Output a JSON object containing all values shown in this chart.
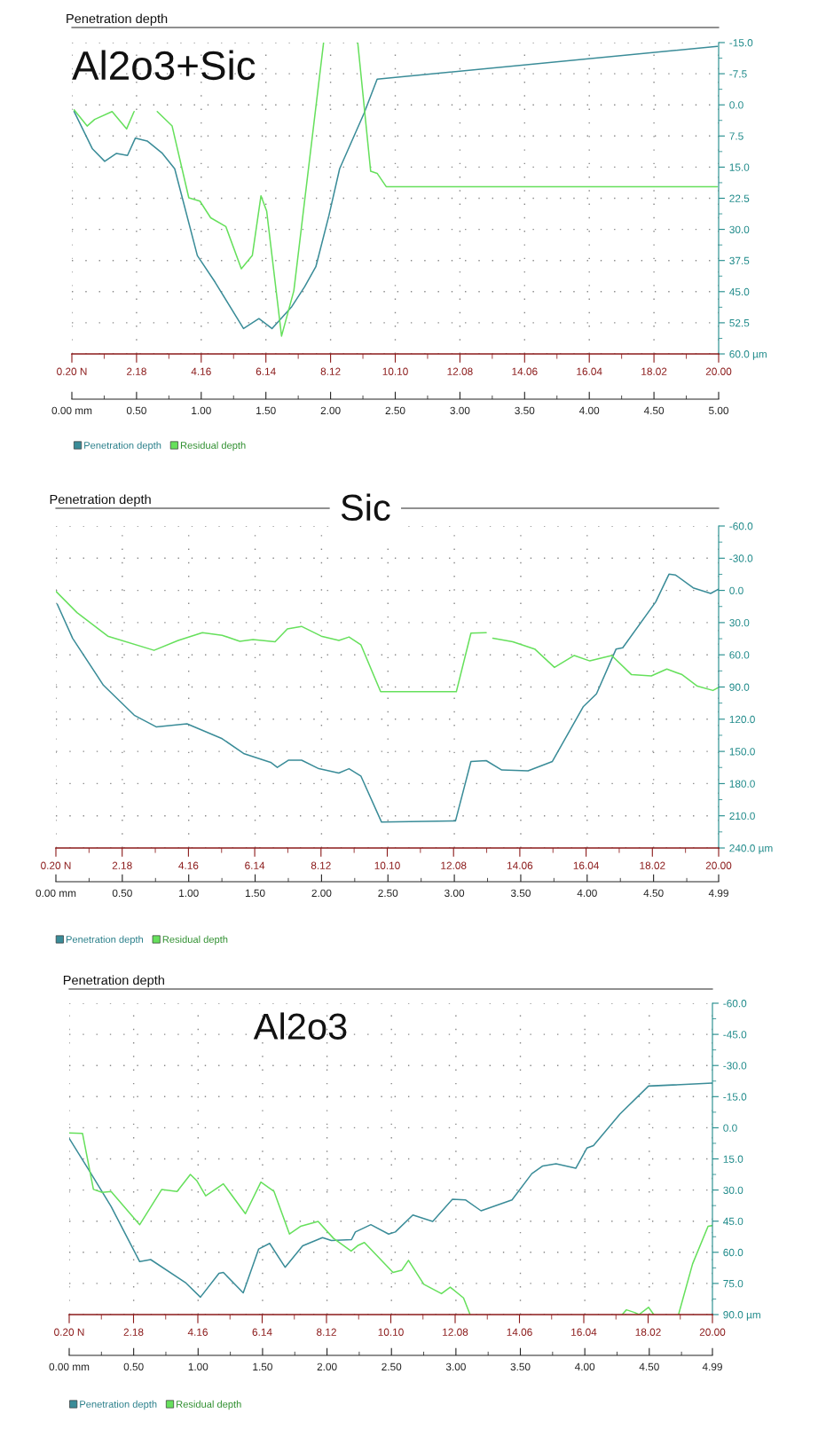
{
  "chart_data": [
    {
      "type": "line",
      "title": "Penetration depth",
      "annotations": [
        "Al2o3+Sic"
      ],
      "xlim": [
        0,
        5
      ],
      "xticks": [
        {
          "value": 0,
          "label": "0.00 mm"
        },
        {
          "value": 0.5,
          "label": "0.50"
        },
        {
          "value": 1,
          "label": "1.00"
        },
        {
          "value": 1.5,
          "label": "1.50"
        },
        {
          "value": 2,
          "label": "2.00"
        },
        {
          "value": 2.5,
          "label": "2.50"
        },
        {
          "value": 3,
          "label": "3.00"
        },
        {
          "value": 3.5,
          "label": "3.50"
        },
        {
          "value": 4,
          "label": "4.00"
        },
        {
          "value": 4.5,
          "label": "4.50"
        },
        {
          "value": 5,
          "label": "5.00"
        }
      ],
      "x2lim": [
        0.2,
        20.0
      ],
      "x2ticks": [
        {
          "value": 0.2,
          "label": "0.20 N"
        },
        {
          "value": 2.18,
          "label": "2.18"
        },
        {
          "value": 4.16,
          "label": "4.16"
        },
        {
          "value": 6.14,
          "label": "6.14"
        },
        {
          "value": 8.12,
          "label": "8.12"
        },
        {
          "value": 10.1,
          "label": "10.10"
        },
        {
          "value": 12.08,
          "label": "12.08"
        },
        {
          "value": 14.06,
          "label": "14.06"
        },
        {
          "value": 16.04,
          "label": "16.04"
        },
        {
          "value": 18.02,
          "label": "18.02"
        },
        {
          "value": 20.0,
          "label": "20.00"
        }
      ],
      "ylim": [
        60,
        -15
      ],
      "yticks": [
        {
          "value": -15,
          "label": "-15.0"
        },
        {
          "value": -7.5,
          "label": "-7.5"
        },
        {
          "value": 0,
          "label": "0.0"
        },
        {
          "value": 7.5,
          "label": "7.5"
        },
        {
          "value": 15,
          "label": "15.0"
        },
        {
          "value": 22.5,
          "label": "22.5"
        },
        {
          "value": 30,
          "label": "30.0"
        },
        {
          "value": 37.5,
          "label": "37.5"
        },
        {
          "value": 45,
          "label": "45.0"
        },
        {
          "value": 52.5,
          "label": "52.5"
        },
        {
          "value": 60,
          "label": "60.0 µm"
        }
      ],
      "grid": true,
      "legend": "bottom",
      "series": [
        {
          "name": "Penetration depth",
          "color": "#3a8c98",
          "x": [
            0.017,
            0.159,
            0.254,
            0.345,
            0.43,
            0.491,
            0.582,
            0.7,
            0.795,
            0.97,
            1.107,
            1.327,
            1.446,
            1.547,
            1.7,
            1.8,
            1.886,
            1.987,
            2.07,
            2.258,
            2.36,
            4.99
          ],
          "values": [
            1.6,
            10.6,
            13.6,
            11.7,
            12.2,
            8.0,
            8.7,
            11.7,
            15.4,
            36.3,
            42.7,
            53.9,
            51.5,
            53.9,
            48.6,
            43.8,
            39.0,
            26.7,
            15.4,
            2.1,
            -6.2,
            -14.1
          ]
        },
        {
          "name": "Residual depth",
          "color": "#66e05c",
          "x": [
            0.017,
            0.118,
            0.176,
            0.311,
            0.423,
            0.481,
            0.57,
            0.66,
            0.775,
            0.904,
            0.99,
            1.073,
            1.19,
            1.31,
            1.395,
            1.462,
            1.506,
            1.621,
            1.716,
            1.946,
            2.08,
            2.21,
            2.31,
            2.36,
            2.43,
            4.99
          ],
          "values": [
            1.2,
            5.1,
            3.5,
            1.6,
            5.8,
            1.6,
            null,
            1.6,
            5.1,
            22.4,
            23.2,
            27.2,
            29.3,
            39.5,
            36.3,
            21.9,
            25.6,
            55.7,
            44.8,
            -15,
            null,
            -15,
            16.0,
            16.5,
            19.7,
            19.7
          ]
        }
      ]
    },
    {
      "type": "line",
      "title": "Penetration depth",
      "annotations": [
        "Sic"
      ],
      "xlim": [
        0,
        4.99
      ],
      "xticks": [
        {
          "value": 0,
          "label": "0.00 mm"
        },
        {
          "value": 0.5,
          "label": "0.50"
        },
        {
          "value": 1,
          "label": "1.00"
        },
        {
          "value": 1.5,
          "label": "1.50"
        },
        {
          "value": 2,
          "label": "2.00"
        },
        {
          "value": 2.5,
          "label": "2.50"
        },
        {
          "value": 3,
          "label": "3.00"
        },
        {
          "value": 3.5,
          "label": "3.50"
        },
        {
          "value": 4,
          "label": "4.00"
        },
        {
          "value": 4.5,
          "label": "4.50"
        },
        {
          "value": 4.99,
          "label": "4.99"
        }
      ],
      "x2lim": [
        0.2,
        20.0
      ],
      "x2ticks": [
        {
          "value": 0.2,
          "label": "0.20 N"
        },
        {
          "value": 2.18,
          "label": "2.18"
        },
        {
          "value": 4.16,
          "label": "4.16"
        },
        {
          "value": 6.14,
          "label": "6.14"
        },
        {
          "value": 8.12,
          "label": "8.12"
        },
        {
          "value": 10.1,
          "label": "10.10"
        },
        {
          "value": 12.08,
          "label": "12.08"
        },
        {
          "value": 14.06,
          "label": "14.06"
        },
        {
          "value": 16.04,
          "label": "16.04"
        },
        {
          "value": 18.02,
          "label": "18.02"
        },
        {
          "value": 20.0,
          "label": "20.00"
        }
      ],
      "ylim": [
        240,
        -60
      ],
      "yticks": [
        {
          "value": -60,
          "label": "-60.0"
        },
        {
          "value": -30,
          "label": "-30.0"
        },
        {
          "value": 0,
          "label": "0.0"
        },
        {
          "value": 30,
          "label": "30.0"
        },
        {
          "value": 60,
          "label": "60.0"
        },
        {
          "value": 90,
          "label": "90.0"
        },
        {
          "value": 120,
          "label": "120.0"
        },
        {
          "value": 150,
          "label": "150.0"
        },
        {
          "value": 180,
          "label": "180.0"
        },
        {
          "value": 210,
          "label": "210.0"
        },
        {
          "value": 240,
          "label": "240.0 µm"
        }
      ],
      "grid": true,
      "legend": "bottom",
      "series": [
        {
          "name": "Penetration depth",
          "color": "#3a8c98",
          "x": [
            0.01,
            0.126,
            0.358,
            0.59,
            0.755,
            0.987,
            1.252,
            1.418,
            1.617,
            1.667,
            1.75,
            1.85,
            1.98,
            2.13,
            2.207,
            2.296,
            2.452,
            3.009,
            3.125,
            3.24,
            3.357,
            3.555,
            3.738,
            3.97,
            4.07,
            4.218,
            4.268,
            4.516,
            4.616,
            4.666,
            4.798,
            4.93,
            4.99
          ],
          "values": [
            12.7,
            44.6,
            88.4,
            116.3,
            127.1,
            124.3,
            138.2,
            152.2,
            160.2,
            164.9,
            158.2,
            158.2,
            166.1,
            170.1,
            166.1,
            172.9,
            215.9,
            214.7,
            159.4,
            158.6,
            167.3,
            168.1,
            159.4,
            108.4,
            96.4,
            54.6,
            53.4,
            10.8,
            -15.1,
            -14.3,
            -2.4,
            2.8,
            -1.2
          ]
        },
        {
          "name": "Residual depth",
          "color": "#66e05c",
          "x": [
            0,
            0.159,
            0.391,
            0.739,
            0.921,
            1.103,
            1.252,
            1.385,
            1.484,
            1.65,
            1.743,
            1.849,
            1.998,
            2.131,
            2.207,
            2.296,
            2.445,
            3.015,
            3.125,
            3.24,
            3.265,
            3.29,
            3.44,
            3.605,
            3.754,
            3.903,
            4.02,
            4.185,
            4.334,
            4.483,
            4.6,
            4.715,
            4.83,
            4.947,
            4.99
          ],
          "values": [
            0.8,
            20.7,
            42.6,
            55.8,
            46.6,
            39.4,
            41.8,
            47.4,
            45.8,
            47.8,
            35.9,
            33.5,
            42.6,
            46.6,
            43.4,
            50.6,
            94.4,
            94.4,
            39.8,
            39.4,
            null,
            44.6,
            47.8,
            54.6,
            71.7,
            60.6,
            65.7,
            60.6,
            78.5,
            79.7,
            73.3,
            78.5,
            89.2,
            93.2,
            90.4
          ]
        }
      ]
    },
    {
      "type": "line",
      "title": "Penetration depth",
      "annotations": [
        "Al2o3"
      ],
      "xlim": [
        0,
        4.99
      ],
      "xticks": [
        {
          "value": 0,
          "label": "0.00 mm"
        },
        {
          "value": 0.5,
          "label": "0.50"
        },
        {
          "value": 1,
          "label": "1.00"
        },
        {
          "value": 1.5,
          "label": "1.50"
        },
        {
          "value": 2,
          "label": "2.00"
        },
        {
          "value": 2.5,
          "label": "2.50"
        },
        {
          "value": 3,
          "label": "3.00"
        },
        {
          "value": 3.5,
          "label": "3.50"
        },
        {
          "value": 4,
          "label": "4.00"
        },
        {
          "value": 4.5,
          "label": "4.50"
        },
        {
          "value": 4.99,
          "label": "4.99"
        }
      ],
      "x2lim": [
        0.2,
        20.0
      ],
      "x2ticks": [
        {
          "value": 0.2,
          "label": "0.20 N"
        },
        {
          "value": 2.18,
          "label": "2.18"
        },
        {
          "value": 4.16,
          "label": "4.16"
        },
        {
          "value": 6.14,
          "label": "6.14"
        },
        {
          "value": 8.12,
          "label": "8.12"
        },
        {
          "value": 10.1,
          "label": "10.10"
        },
        {
          "value": 12.08,
          "label": "12.08"
        },
        {
          "value": 14.06,
          "label": "14.06"
        },
        {
          "value": 16.04,
          "label": "16.04"
        },
        {
          "value": 18.02,
          "label": "18.02"
        },
        {
          "value": 20.0,
          "label": "20.00"
        }
      ],
      "ylim": [
        90,
        -60
      ],
      "yticks": [
        {
          "value": -60,
          "label": "-60.0"
        },
        {
          "value": -45,
          "label": "-45.0"
        },
        {
          "value": -30,
          "label": "-30.0"
        },
        {
          "value": -15,
          "label": "-15.0"
        },
        {
          "value": 0,
          "label": "0.0"
        },
        {
          "value": 15,
          "label": "15.0"
        },
        {
          "value": 30,
          "label": "30.0"
        },
        {
          "value": 45,
          "label": "45.0"
        },
        {
          "value": 60,
          "label": "60.0"
        },
        {
          "value": 75,
          "label": "75.0"
        },
        {
          "value": 90,
          "label": "90.0 µm"
        }
      ],
      "grid": true,
      "legend": "bottom",
      "series": [
        {
          "name": "Penetration depth",
          "color": "#3a8c98",
          "x": [
            0,
            0.154,
            0.325,
            0.547,
            0.632,
            0.906,
            1.018,
            1.162,
            1.196,
            1.35,
            1.47,
            1.555,
            1.675,
            1.811,
            1.965,
            2.034,
            2.19,
            2.22,
            2.34,
            2.478,
            2.53,
            2.666,
            2.82,
            2.973,
            3.076,
            3.195,
            3.435,
            3.589,
            3.674,
            3.777,
            3.93,
            4.016,
            4.067,
            4.272,
            4.494,
            4.99
          ],
          "values": [
            5.1,
            20.5,
            37.9,
            64.5,
            63.5,
            74.8,
            81.6,
            70.1,
            69.7,
            79.5,
            58.4,
            55.7,
            67.2,
            56.9,
            52.9,
            54.3,
            53.9,
            50.2,
            46.7,
            51.2,
            50.2,
            42.0,
            45.1,
            34.4,
            34.8,
            40.0,
            34.8,
            22.1,
            18.4,
            17.4,
            19.5,
            9.8,
            8.6,
            -6.6,
            -20.1,
            -21.5
          ]
        },
        {
          "name": "Residual depth",
          "color": "#66e05c",
          "x": [
            0,
            0.103,
            0.188,
            0.256,
            0.325,
            0.547,
            0.718,
            0.837,
            0.94,
            0.991,
            1.059,
            1.196,
            1.367,
            1.487,
            1.589,
            1.709,
            1.794,
            1.931,
            2.051,
            2.187,
            2.238,
            2.29,
            2.512,
            2.58,
            2.632,
            2.751,
            2.888,
            2.956,
            3.059,
            3.11,
            3.7,
            4.29,
            4.323,
            4.39,
            4.42,
            4.494,
            4.535,
            4.63,
            4.727,
            4.836,
            4.956,
            4.99
          ],
          "values": [
            2.5,
            2.7,
            29.7,
            31.1,
            30.7,
            46.7,
            29.7,
            30.7,
            22.5,
            25.6,
            32.8,
            27.0,
            41.4,
            26.2,
            30.7,
            51.2,
            47.5,
            45.1,
            53.3,
            59.4,
            56.8,
            55.3,
            69.7,
            68.6,
            63.9,
            75.4,
            79.9,
            76.8,
            82.0,
            90,
            null,
            90,
            87.7,
            89.1,
            90,
            86.5,
            90,
            null,
            90,
            65.6,
            47.5,
            47.1
          ]
        }
      ]
    }
  ]
}
